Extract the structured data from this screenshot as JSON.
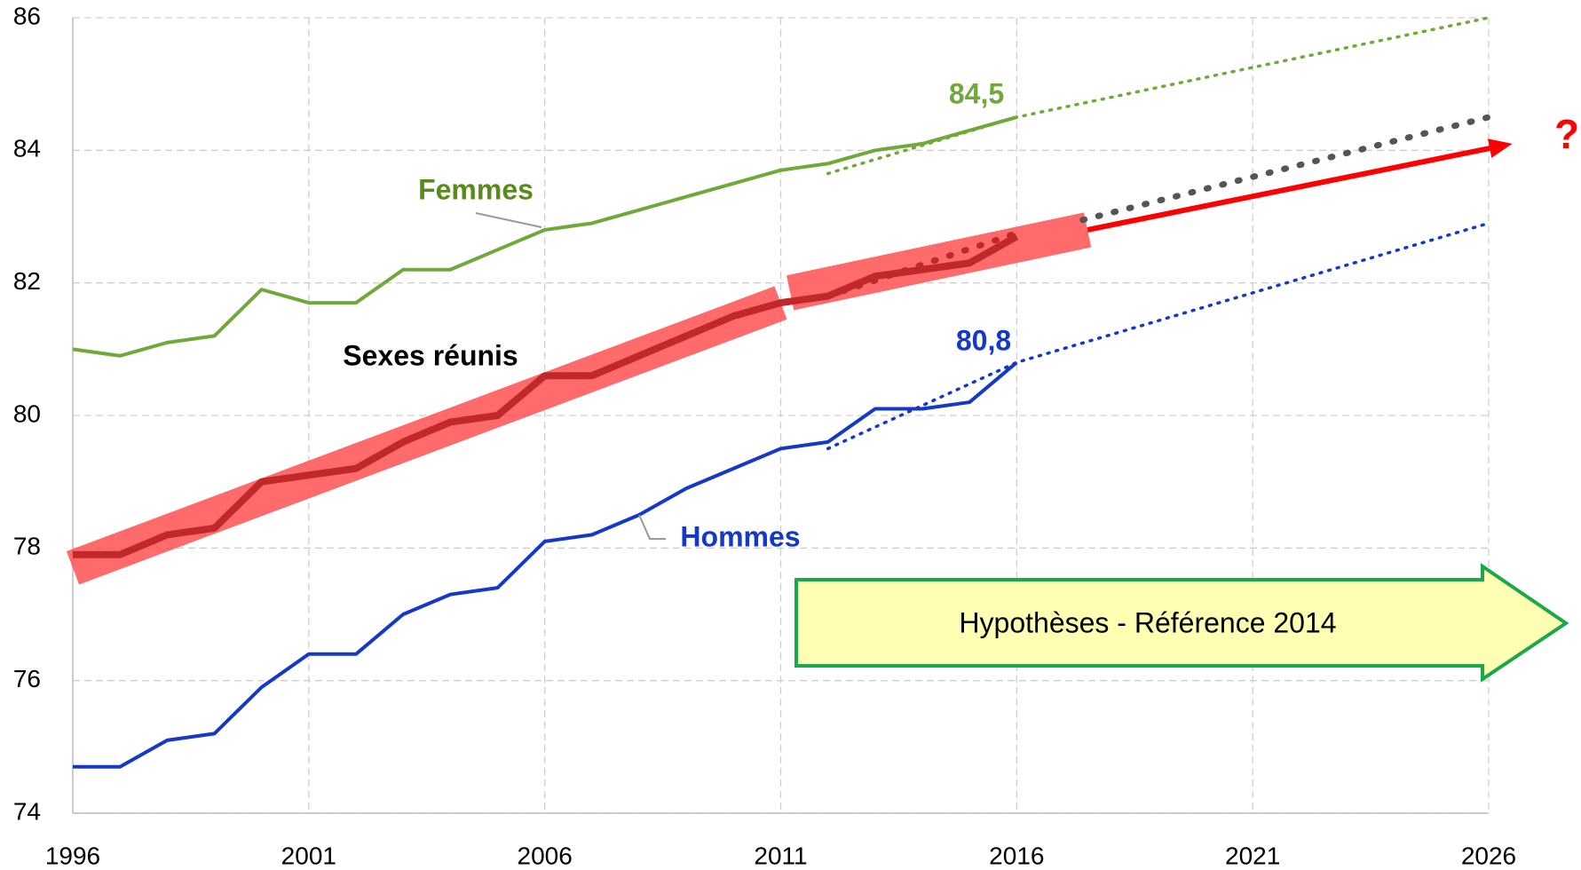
{
  "chart_data": {
    "type": "line",
    "x": [
      1996,
      1997,
      1998,
      1999,
      2000,
      2001,
      2002,
      2003,
      2004,
      2005,
      2006,
      2007,
      2008,
      2009,
      2010,
      2011,
      2012,
      2013,
      2014,
      2015,
      2016
    ],
    "series": [
      {
        "name": "Femmes",
        "color": "#70a83a",
        "values": [
          81.0,
          80.9,
          81.1,
          81.2,
          81.9,
          81.7,
          81.7,
          82.2,
          82.2,
          82.5,
          82.8,
          82.9,
          83.1,
          83.3,
          83.5,
          83.7,
          83.8,
          84.0,
          84.1,
          84.3,
          84.5
        ],
        "value_labels": [
          null,
          null,
          null,
          null,
          null,
          null,
          null,
          null,
          null,
          null,
          null,
          null,
          null,
          null,
          null,
          null,
          null,
          null,
          null,
          null,
          "84,5"
        ]
      },
      {
        "name": "Hommes",
        "color": "#1438c8",
        "values": [
          74.7,
          74.7,
          75.1,
          75.2,
          75.9,
          76.4,
          76.4,
          77.0,
          77.3,
          77.4,
          78.1,
          78.2,
          78.5,
          78.9,
          79.2,
          79.5,
          79.6,
          80.1,
          80.1,
          80.2,
          80.8
        ],
        "value_labels": [
          null,
          null,
          null,
          null,
          null,
          null,
          null,
          null,
          null,
          null,
          null,
          null,
          null,
          null,
          null,
          null,
          null,
          null,
          null,
          null,
          "80,8"
        ]
      },
      {
        "name": "Sexes réunis",
        "color": "#c0282a",
        "values": [
          77.9,
          77.9,
          78.2,
          78.3,
          79.0,
          79.1,
          79.2,
          79.6,
          79.9,
          80.0,
          80.6,
          80.6,
          80.9,
          81.2,
          81.5,
          81.7,
          81.8,
          82.1,
          82.2,
          82.3,
          82.7
        ]
      }
    ],
    "projections": [
      {
        "color": "#70a83a",
        "x": [
          2012,
          2016,
          2026
        ],
        "values": [
          83.65,
          84.5,
          86.0
        ]
      },
      {
        "color": "#1438c8",
        "x": [
          2012,
          2016,
          2026
        ],
        "values": [
          79.5,
          80.8,
          82.9
        ]
      },
      {
        "color": "#c0282a",
        "x": [
          2012,
          2016
        ],
        "values": [
          81.8,
          82.75
        ]
      },
      {
        "color": "#555555",
        "x": [
          2017.4,
          2026
        ],
        "values": [
          82.95,
          84.5
        ]
      }
    ],
    "bands": [
      {
        "color": "#ff5a5a",
        "x": [
          1996,
          2011
        ],
        "values": [
          77.7,
          81.7
        ]
      },
      {
        "color": "#ff5a5a",
        "x": [
          2011.2,
          2017.5
        ],
        "values": [
          81.85,
          82.8
        ]
      }
    ],
    "trend_arrow": {
      "color": "#ff0000",
      "x": [
        2017.5,
        2026.5
      ],
      "values": [
        82.8,
        84.1
      ],
      "label": "?"
    },
    "hypothesis_box": "Hypothèses - Référence 2014",
    "xlim": [
      1996,
      2026
    ],
    "xticks": [
      1996,
      2001,
      2006,
      2011,
      2016,
      2021,
      2026
    ],
    "ylim": [
      74,
      86
    ],
    "yticks": [
      74,
      76,
      78,
      80,
      82,
      84,
      86
    ],
    "grid": true
  }
}
